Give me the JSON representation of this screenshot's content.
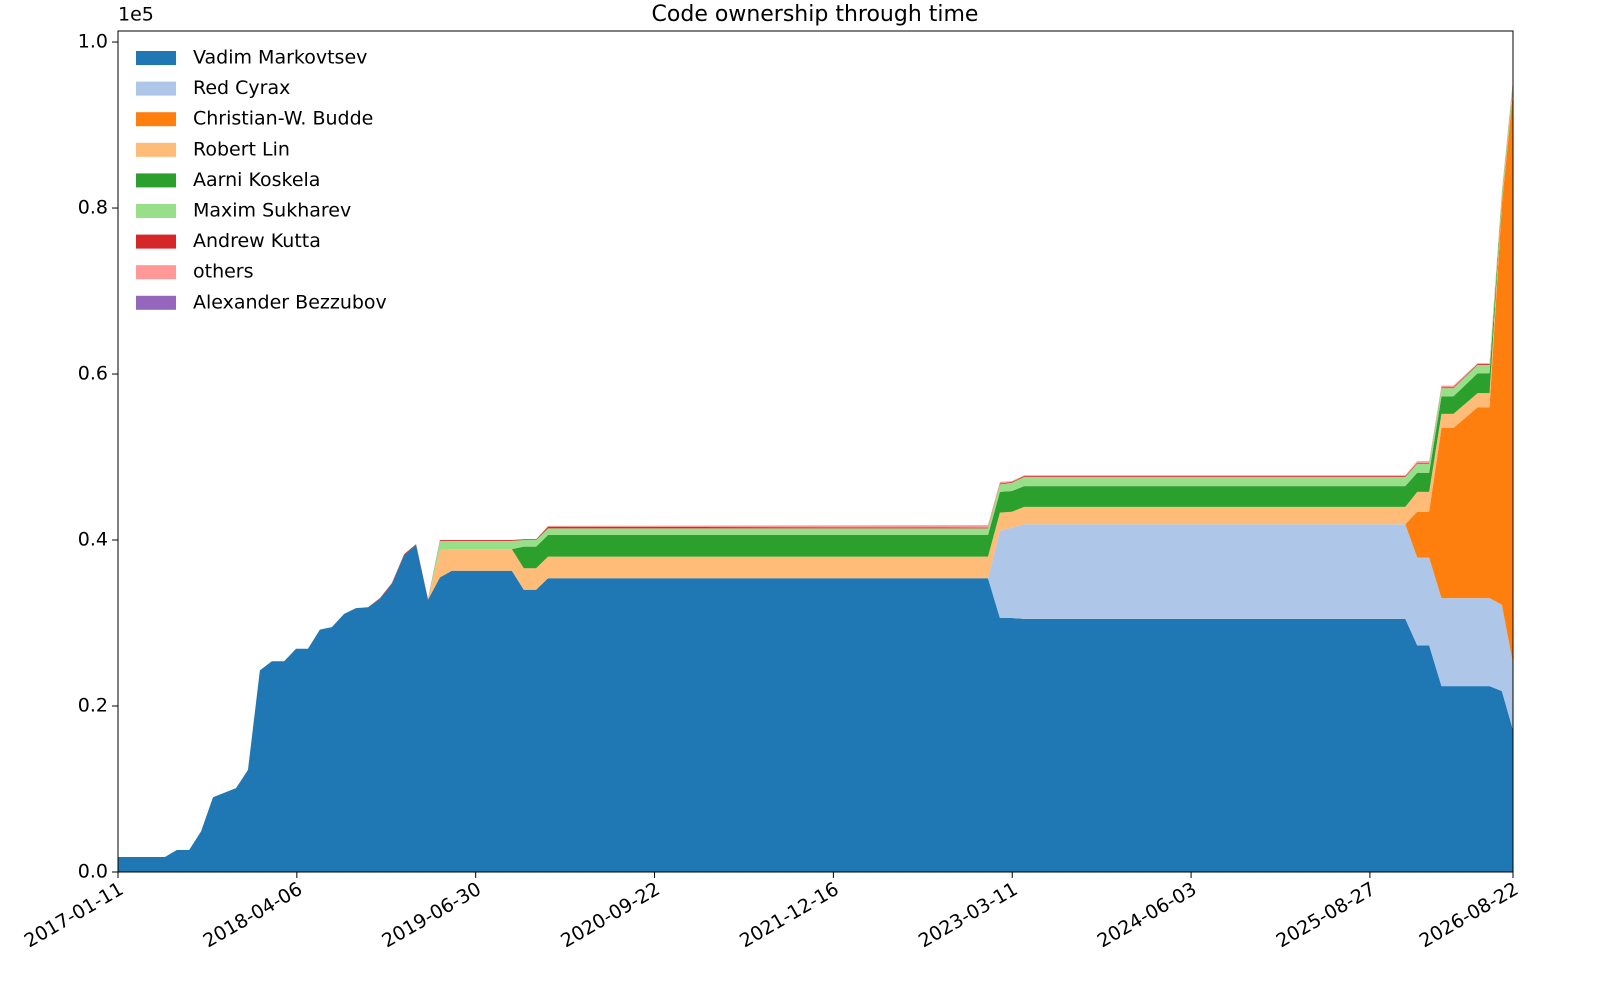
{
  "chart_data": {
    "type": "stacked_area",
    "title": "Code ownership through time",
    "y_offset_label": "1e5",
    "x": [
      "2017-01-11",
      "2017-05-09",
      "2017-06-08",
      "2017-07-09",
      "2017-08-08",
      "2017-09-07",
      "2017-11-04",
      "2017-12-04",
      "2018-01-03",
      "2018-02-02",
      "2018-03-05",
      "2018-04-04",
      "2018-05-04",
      "2018-06-03",
      "2018-07-03",
      "2018-08-03",
      "2018-09-02",
      "2018-10-02",
      "2018-11-01",
      "2018-12-01",
      "2019-01-01",
      "2019-01-31",
      "2019-03-02",
      "2019-04-01",
      "2019-05-01",
      "2019-09-29",
      "2019-10-29",
      "2019-11-29",
      "2019-12-29",
      "2023-01-09",
      "2023-02-08",
      "2023-03-10",
      "2023-04-10",
      "2025-11-24",
      "2025-12-24",
      "2026-01-23",
      "2026-02-23",
      "2026-03-25",
      "2026-05-25",
      "2026-06-24",
      "2026-07-25",
      "2026-08-22"
    ],
    "series": [
      {
        "name": "Vadim Markovtsev",
        "color": "#1f77b4",
        "values": [
          1800,
          1800,
          2650,
          2650,
          4900,
          9000,
          10100,
          12300,
          24300,
          25400,
          25400,
          26900,
          26900,
          29200,
          29500,
          31100,
          31800,
          31900,
          32900,
          34700,
          38200,
          39400,
          32800,
          35500,
          36300,
          36300,
          34000,
          34000,
          35400,
          35400,
          30600,
          30600,
          30500,
          30500,
          27300,
          27300,
          22400,
          22400,
          22400,
          22400,
          21800,
          17100
        ]
      },
      {
        "name": "Red Cyrax",
        "color": "#aec7e8",
        "values": [
          0,
          0,
          0,
          0,
          0,
          0,
          0,
          0,
          0,
          0,
          0,
          0,
          0,
          0,
          0,
          0,
          0,
          0,
          0,
          0,
          0,
          0,
          0,
          0,
          0,
          0,
          0,
          0,
          0,
          0,
          10500,
          10900,
          11400,
          11400,
          10600,
          10600,
          10600,
          10600,
          10600,
          10600,
          10400,
          8000
        ]
      },
      {
        "name": "Christian-W. Budde",
        "color": "#ff7f0e",
        "values": [
          0,
          0,
          0,
          0,
          0,
          0,
          0,
          0,
          0,
          0,
          0,
          0,
          0,
          0,
          0,
          0,
          0,
          0,
          0,
          0,
          0,
          0,
          0,
          0,
          0,
          0,
          0,
          0,
          0,
          0,
          0,
          0,
          0,
          0,
          5500,
          5500,
          20500,
          20500,
          23000,
          23000,
          48300,
          68900
        ]
      },
      {
        "name": "Robert Lin",
        "color": "#ffbb78",
        "values": [
          0,
          0,
          0,
          0,
          0,
          0,
          0,
          0,
          0,
          0,
          0,
          0,
          0,
          0,
          0,
          0,
          0,
          0,
          0,
          0,
          0,
          0,
          0,
          3300,
          2600,
          2600,
          2600,
          2600,
          2600,
          2600,
          2200,
          1900,
          2100,
          2100,
          2400,
          2400,
          1700,
          1700,
          1700,
          1700,
          500,
          500
        ]
      },
      {
        "name": "Aarni Koskela",
        "color": "#2ca02c",
        "values": [
          0,
          0,
          0,
          0,
          0,
          0,
          0,
          0,
          0,
          0,
          0,
          0,
          0,
          0,
          0,
          0,
          0,
          0,
          0,
          0,
          0,
          0,
          0,
          0,
          0,
          0,
          2600,
          2600,
          2600,
          2600,
          2500,
          2500,
          2500,
          2500,
          2300,
          2300,
          2100,
          2100,
          2400,
          2400,
          300,
          300
        ]
      },
      {
        "name": "Maxim Sukharev",
        "color": "#98df8a",
        "values": [
          0,
          0,
          0,
          0,
          0,
          0,
          0,
          0,
          0,
          0,
          0,
          0,
          0,
          0,
          0,
          0,
          0,
          0,
          0,
          0,
          0,
          0,
          0,
          1100,
          1000,
          1000,
          800,
          800,
          800,
          800,
          900,
          1000,
          1100,
          1100,
          1100,
          1100,
          1000,
          1000,
          1000,
          1000,
          500,
          500
        ]
      },
      {
        "name": "Andrew Kutta",
        "color": "#d62728",
        "values": [
          0,
          0,
          0,
          0,
          0,
          0,
          0,
          0,
          0,
          0,
          0,
          0,
          0,
          0,
          0,
          0,
          0,
          0,
          100,
          100,
          100,
          100,
          100,
          100,
          100,
          100,
          100,
          100,
          200,
          100,
          100,
          100,
          100,
          100,
          100,
          100,
          100,
          100,
          100,
          100,
          100,
          100
        ]
      },
      {
        "name": "others",
        "color": "#ff9896",
        "values": [
          0,
          0,
          0,
          0,
          0,
          0,
          0,
          0,
          0,
          0,
          0,
          0,
          0,
          0,
          0,
          0,
          0,
          0,
          0,
          0,
          0,
          0,
          0,
          0,
          0,
          0,
          0,
          0,
          100,
          300,
          200,
          100,
          100,
          100,
          200,
          200,
          200,
          200,
          100,
          100,
          100,
          100
        ]
      },
      {
        "name": "Alexander Bezzubov",
        "color": "#9467bd",
        "values": [
          0,
          0,
          0,
          0,
          0,
          0,
          0,
          0,
          0,
          0,
          0,
          0,
          0,
          0,
          0,
          0,
          0,
          0,
          0,
          0,
          0,
          0,
          0,
          0,
          0,
          0,
          0,
          0,
          0,
          0,
          0,
          0,
          0,
          0,
          0,
          0,
          0,
          0,
          0,
          0,
          0,
          0
        ]
      }
    ],
    "xlim": [
      "2017-01-11",
      "2026-08-22"
    ],
    "xticks": [
      "2017-01-11",
      "2018-04-06",
      "2019-06-30",
      "2020-09-22",
      "2021-12-16",
      "2023-03-11",
      "2024-06-03",
      "2025-08-27",
      "2026-08-22"
    ],
    "ylim": [
      0,
      101330
    ],
    "yticks": [
      {
        "value": 0,
        "label": "0.0"
      },
      {
        "value": 20000,
        "label": "0.2"
      },
      {
        "value": 40000,
        "label": "0.4"
      },
      {
        "value": 60000,
        "label": "0.6"
      },
      {
        "value": 80000,
        "label": "0.8"
      },
      {
        "value": 100000,
        "label": "1.0"
      }
    ],
    "legend": "upper left",
    "grid": false
  }
}
